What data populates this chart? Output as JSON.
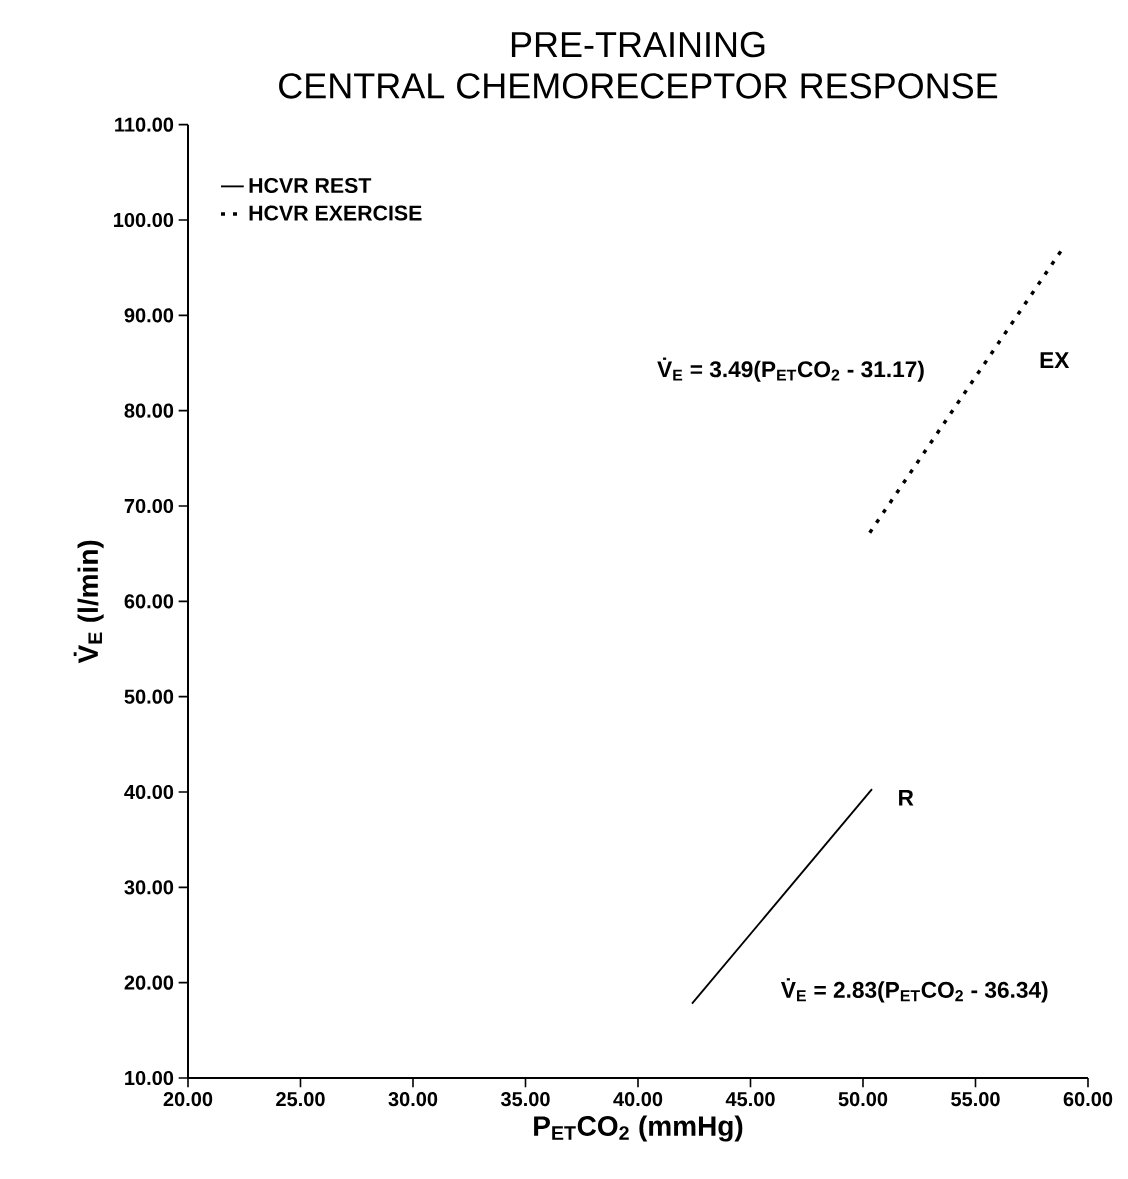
{
  "chart_data": {
    "type": "line",
    "title": "PRE-TRAINING\nCENTRAL CHEMORECEPTOR RESPONSE",
    "xlabel": "P$_{ET}$CO$_{2}$ (mmHg)",
    "ylabel": "V̇$_{E}$  (l/min)",
    "xlim": [
      20,
      60
    ],
    "ylim": [
      10,
      110
    ],
    "xticks": [
      {
        "value": 20,
        "label": "20.00"
      },
      {
        "value": 25,
        "label": "25.00"
      },
      {
        "value": 30,
        "label": "30.00"
      },
      {
        "value": 35,
        "label": "35.00"
      },
      {
        "value": 40,
        "label": "40.00"
      },
      {
        "value": 45,
        "label": "45.00"
      },
      {
        "value": 50,
        "label": "50.00"
      },
      {
        "value": 55,
        "label": "55.00"
      },
      {
        "value": 60,
        "label": "60.00"
      }
    ],
    "yticks": [
      {
        "value": 10,
        "label": "10.00"
      },
      {
        "value": 20,
        "label": "20.00"
      },
      {
        "value": 30,
        "label": "30.00"
      },
      {
        "value": 40,
        "label": "40.00"
      },
      {
        "value": 50,
        "label": "50.00"
      },
      {
        "value": 60,
        "label": "60.00"
      },
      {
        "value": 70,
        "label": "70.00"
      },
      {
        "value": 80,
        "label": "80.00"
      },
      {
        "value": 90,
        "label": "90.00"
      },
      {
        "value": 100,
        "label": "100.00"
      },
      {
        "value": 110,
        "label": "110.00"
      }
    ],
    "series": [
      {
        "name": "HCVR REST",
        "color": "#000000",
        "line_style": "solid",
        "x": [
          42.4,
          50.4
        ],
        "values": [
          17.8,
          40.3
        ]
      },
      {
        "name": "HCVR EXERCISE",
        "color": "#000000",
        "line_style": "dotted",
        "x": [
          50.3,
          58.9
        ],
        "values": [
          67.2,
          97.1
        ]
      }
    ],
    "annotations": [
      "V̇$_{E}$ = 3.49(P$_{ET}$CO$_{2}$ - 31.17)",
      "**EX**",
      "**R**",
      "V̇$_{E}$ = 2.83(P$_{ET}$CO$_{2}$ - 36.34)"
    ],
    "legend": "top left",
    "grid": false,
    "marker": "none"
  }
}
